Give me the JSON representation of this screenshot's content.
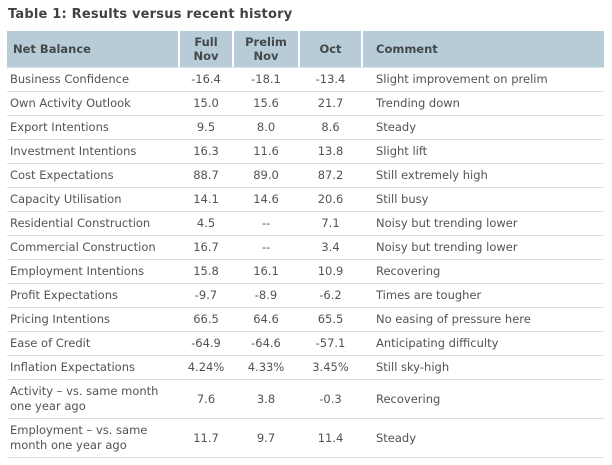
{
  "title": "Table 1: Results versus recent history",
  "table": {
    "columns": [
      "Net Balance",
      "Full Nov",
      "Prelim Nov",
      "Oct",
      "Comment"
    ],
    "rows": [
      {
        "label": "Business Confidence",
        "full_nov": "-16.4",
        "prelim_nov": "-18.1",
        "oct": "-13.4",
        "comment": "Slight improvement on prelim"
      },
      {
        "label": "Own Activity Outlook",
        "full_nov": "15.0",
        "prelim_nov": "15.6",
        "oct": "21.7",
        "comment": "Trending down"
      },
      {
        "label": "Export Intentions",
        "full_nov": "9.5",
        "prelim_nov": "8.0",
        "oct": "8.6",
        "comment": "Steady"
      },
      {
        "label": "Investment Intentions",
        "full_nov": "16.3",
        "prelim_nov": "11.6",
        "oct": "13.8",
        "comment": "Slight lift"
      },
      {
        "label": "Cost Expectations",
        "full_nov": "88.7",
        "prelim_nov": "89.0",
        "oct": "87.2",
        "comment": "Still extremely high"
      },
      {
        "label": "Capacity Utilisation",
        "full_nov": "14.1",
        "prelim_nov": "14.6",
        "oct": "20.6",
        "comment": "Still busy"
      },
      {
        "label": "Residential Construction",
        "full_nov": "4.5",
        "prelim_nov": "--",
        "oct": "7.1",
        "comment": "Noisy but trending lower"
      },
      {
        "label": "Commercial Construction",
        "full_nov": "16.7",
        "prelim_nov": "--",
        "oct": "3.4",
        "comment": "Noisy but trending lower"
      },
      {
        "label": "Employment Intentions",
        "full_nov": "15.8",
        "prelim_nov": "16.1",
        "oct": "10.9",
        "comment": "Recovering"
      },
      {
        "label": "Profit Expectations",
        "full_nov": "-9.7",
        "prelim_nov": "-8.9",
        "oct": "-6.2",
        "comment": "Times are tougher"
      },
      {
        "label": "Pricing Intentions",
        "full_nov": "66.5",
        "prelim_nov": "64.6",
        "oct": "65.5",
        "comment": "No easing of pressure here"
      },
      {
        "label": "Ease of Credit",
        "full_nov": "-64.9",
        "prelim_nov": "-64.6",
        "oct": "-57.1",
        "comment": "Anticipating difficulty"
      },
      {
        "label": "Inflation Expectations",
        "full_nov": "4.24%",
        "prelim_nov": "4.33%",
        "oct": "3.45%",
        "comment": "Still sky-high"
      },
      {
        "label": "Activity – vs. same month one year ago",
        "full_nov": "7.6",
        "prelim_nov": "3.8",
        "oct": "-0.3",
        "comment": "Recovering"
      },
      {
        "label": "Employment – vs. same month one year ago",
        "full_nov": "11.7",
        "prelim_nov": "9.7",
        "oct": "11.4",
        "comment": "Steady"
      }
    ]
  },
  "colors": {
    "header_bg": "#b7ccd7",
    "title_text": "#3f4345",
    "body_text": "#4e5457",
    "row_border": "#d6e1e7"
  }
}
